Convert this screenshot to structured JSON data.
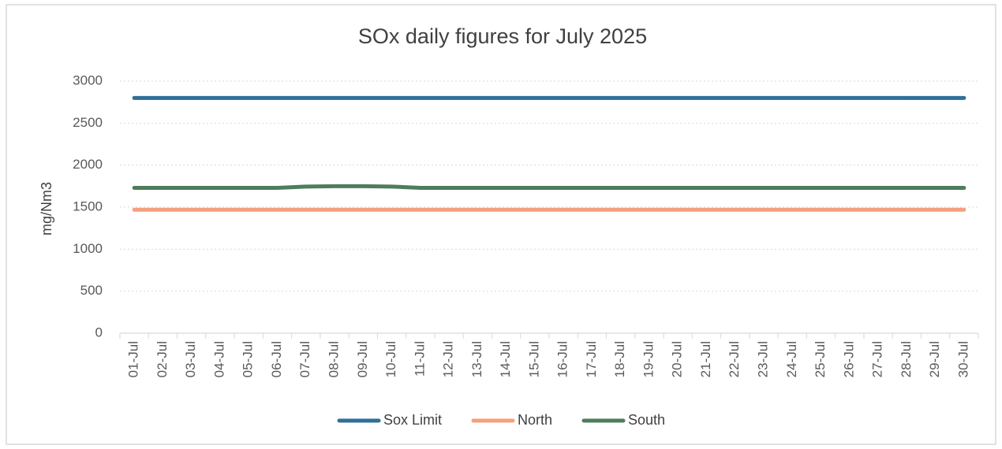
{
  "chart_data": {
    "type": "line",
    "title": "SOx daily figures for July 2025",
    "y_label": "mg/Nm3",
    "categories": [
      "01-Jul",
      "02-Jul",
      "03-Jul",
      "04-Jul",
      "05-Jul",
      "06-Jul",
      "07-Jul",
      "08-Jul",
      "09-Jul",
      "10-Jul",
      "11-Jul",
      "12-Jul",
      "13-Jul",
      "14-Jul",
      "15-Jul",
      "16-Jul",
      "17-Jul",
      "18-Jul",
      "19-Jul",
      "20-Jul",
      "21-Jul",
      "22-Jul",
      "23-Jul",
      "24-Jul",
      "25-Jul",
      "26-Jul",
      "27-Jul",
      "28-Jul",
      "29-Jul",
      "30-Jul"
    ],
    "series": [
      {
        "name": "Sox Limit",
        "color": "#2f6f98",
        "values": [
          2800,
          2800,
          2800,
          2800,
          2800,
          2800,
          2800,
          2800,
          2800,
          2800,
          2800,
          2800,
          2800,
          2800,
          2800,
          2800,
          2800,
          2800,
          2800,
          2800,
          2800,
          2800,
          2800,
          2800,
          2800,
          2800,
          2800,
          2800,
          2800,
          2800
        ]
      },
      {
        "name": "North",
        "color": "#f4a07e",
        "values": [
          1470,
          1470,
          1470,
          1470,
          1470,
          1470,
          1470,
          1470,
          1470,
          1470,
          1470,
          1470,
          1470,
          1470,
          1470,
          1470,
          1470,
          1470,
          1470,
          1470,
          1470,
          1470,
          1470,
          1470,
          1470,
          1470,
          1470,
          1470,
          1470,
          1470
        ]
      },
      {
        "name": "South",
        "color": "#4f7d5c",
        "values": [
          1730,
          1730,
          1730,
          1730,
          1730,
          1730,
          1745,
          1750,
          1750,
          1745,
          1730,
          1730,
          1730,
          1730,
          1730,
          1730,
          1730,
          1730,
          1730,
          1730,
          1730,
          1730,
          1730,
          1730,
          1730,
          1730,
          1730,
          1730,
          1730,
          1730
        ]
      }
    ],
    "ylim": [
      0,
      3000
    ],
    "yticks": [
      0,
      500,
      1000,
      1500,
      2000,
      2500,
      3000
    ],
    "grid": true,
    "legend": "bottom"
  }
}
